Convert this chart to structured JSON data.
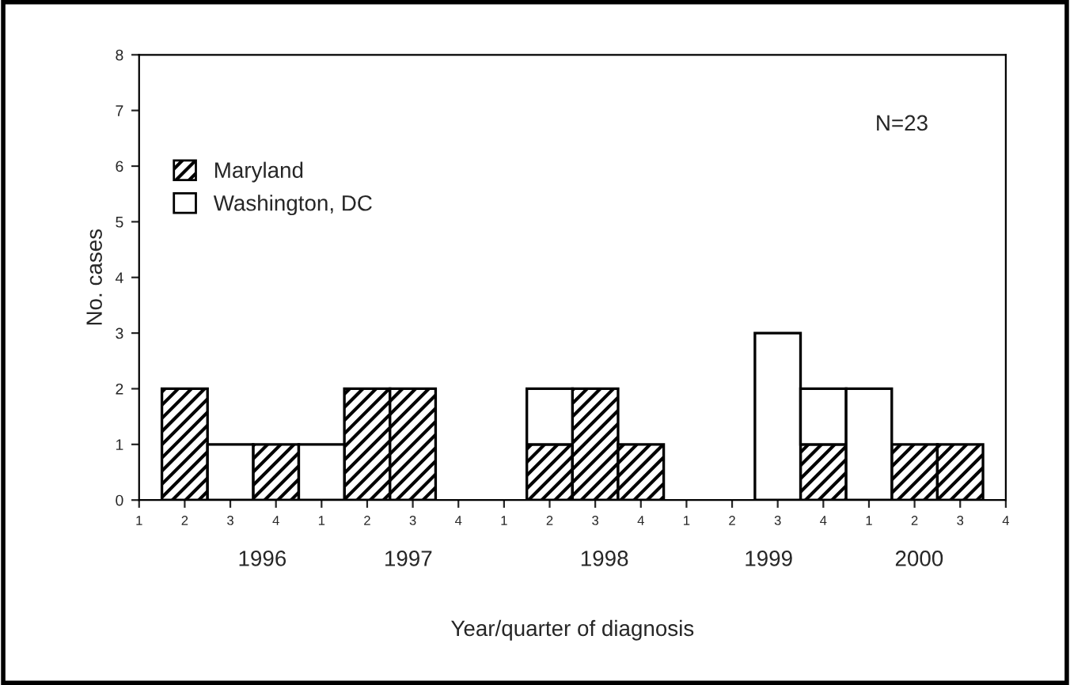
{
  "chart_data": {
    "type": "bar",
    "stacked": true,
    "categories": [
      "1",
      "2",
      "3",
      "4",
      "1",
      "2",
      "3",
      "4",
      "1",
      "2",
      "3",
      "4",
      "1",
      "2",
      "3",
      "4",
      "1",
      "2",
      "3",
      "4"
    ],
    "series": [
      {
        "name": "Maryland",
        "color": "#000000",
        "values": [
          0,
          2,
          0,
          1,
          0,
          2,
          2,
          0,
          0,
          1,
          2,
          1,
          0,
          0,
          0,
          1,
          0,
          1,
          1,
          0
        ]
      },
      {
        "name": "Washington, DC",
        "color": "#ffffff",
        "values": [
          0,
          0,
          1,
          0,
          1,
          0,
          0,
          0,
          0,
          1,
          0,
          0,
          0,
          0,
          3,
          1,
          2,
          0,
          0,
          0
        ]
      }
    ],
    "ylim": [
      0,
      8
    ],
    "yticks": [
      0,
      1,
      2,
      3,
      4,
      5,
      6,
      7,
      8
    ],
    "ylabel": "No. cases",
    "xlabel": "Year/quarter of diagnosis",
    "annotations": [
      "N=23",
      "1996",
      "1997",
      "1998",
      "1999",
      "2000"
    ],
    "legend": "top left",
    "grid": false
  }
}
